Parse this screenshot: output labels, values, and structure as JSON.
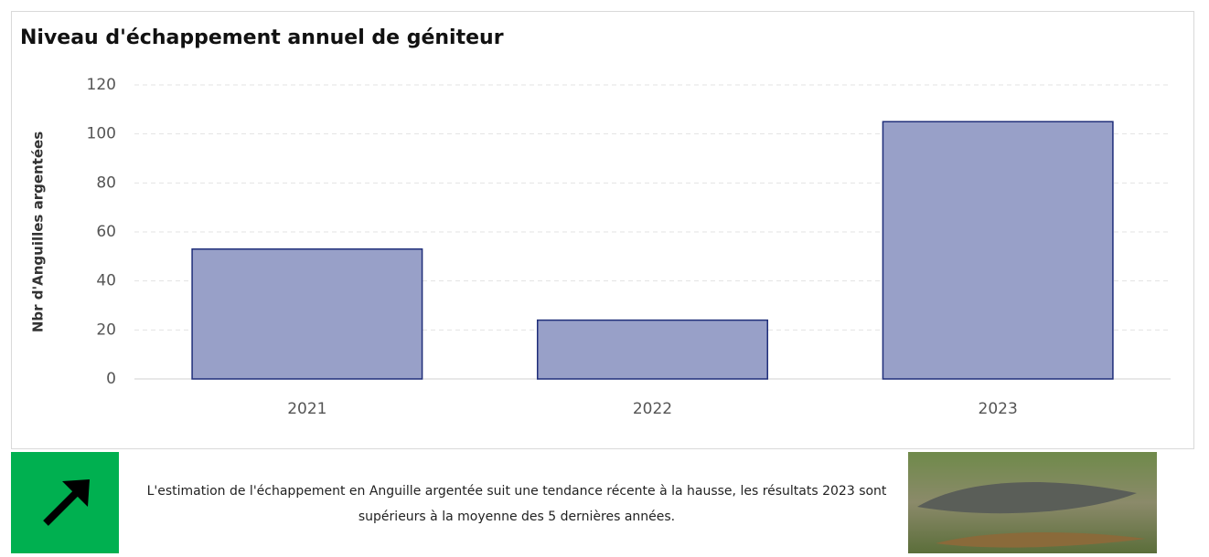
{
  "chart_data": {
    "type": "bar",
    "title": "Niveau d'échappement annuel de géniteur",
    "y_label": "Nbr d'Anguilles argentées",
    "categories": [
      "2021",
      "2022",
      "2023"
    ],
    "values": [
      53,
      24,
      105
    ],
    "color": "#98a0c8",
    "edge_color": "#1f2e7a",
    "ylim": [
      0,
      120
    ],
    "yticks": [
      0,
      20,
      40,
      60,
      80,
      100,
      120
    ],
    "grid": true
  },
  "footer": {
    "text": "L'estimation de l'échappement en Anguille argentée suit une tendance récente à la hausse, les résultats 2023 sont supérieurs à la moyenne des 5 dernières années."
  }
}
